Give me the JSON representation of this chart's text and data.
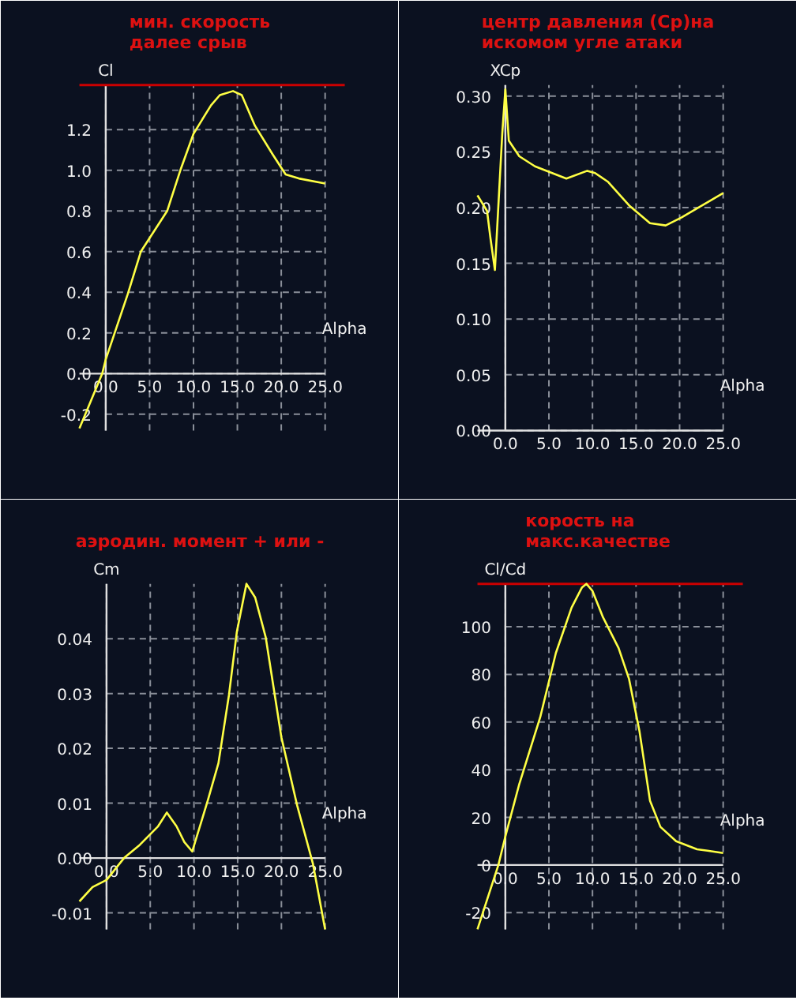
{
  "chart_data": [
    {
      "type": "line",
      "title": "мин. скорость\nдалее срыв",
      "xlabel": "Alpha",
      "ylabel": "Cl",
      "grid": true,
      "xlim": [
        -3.0,
        25.0
      ],
      "ylim": [
        -0.28,
        1.42
      ],
      "xticks": [
        {
          "value": 0,
          "label": "0.0"
        },
        {
          "value": 5,
          "label": "5.0"
        },
        {
          "value": 10,
          "label": "10.0"
        },
        {
          "value": 15,
          "label": "15.0"
        },
        {
          "value": 20,
          "label": "20.0"
        },
        {
          "value": 25,
          "label": "25.0"
        }
      ],
      "yticks": [
        {
          "value": -0.2,
          "label": "-0.2"
        },
        {
          "value": 0,
          "label": "0.0"
        },
        {
          "value": 0.2,
          "label": "0.2"
        },
        {
          "value": 0.4,
          "label": "0.4"
        },
        {
          "value": 0.6,
          "label": "0.6"
        },
        {
          "value": 0.8,
          "label": "0.8"
        },
        {
          "value": 1.0,
          "label": "1.0"
        },
        {
          "value": 1.2,
          "label": "1.2"
        }
      ],
      "ref_lines": [
        {
          "axis": "y",
          "value": 1.42,
          "color": "#cc0000"
        }
      ],
      "series": [
        {
          "color": "#ffff44",
          "x": [
            -3.0,
            -0.4,
            0,
            2.5,
            4.0,
            7.0,
            8.5,
            10.0,
            12.0,
            13.0,
            14.5,
            15.5,
            17.0,
            19.0,
            20.5,
            22.0,
            25.0
          ],
          "values": [
            -0.27,
            0,
            0.07,
            0.39,
            0.6,
            0.8,
            1.0,
            1.18,
            1.32,
            1.37,
            1.39,
            1.37,
            1.22,
            1.08,
            0.98,
            0.96,
            0.935
          ]
        }
      ]
    },
    {
      "type": "line",
      "title": "центр давления (Ср)на\nискомом угле атаки",
      "xlabel": "Alpha",
      "ylabel": "XCp",
      "grid": true,
      "xlim": [
        -3.2,
        25.0
      ],
      "ylim": [
        0,
        0.31
      ],
      "xticks": [
        {
          "value": 0,
          "label": "0.0"
        },
        {
          "value": 5,
          "label": "5.0"
        },
        {
          "value": 10,
          "label": "10.0"
        },
        {
          "value": 15,
          "label": "15.0"
        },
        {
          "value": 20,
          "label": "20.0"
        },
        {
          "value": 25,
          "label": "25.0"
        }
      ],
      "yticks": [
        {
          "value": 0,
          "label": "0.00"
        },
        {
          "value": 0.05,
          "label": "0.05"
        },
        {
          "value": 0.1,
          "label": "0.10"
        },
        {
          "value": 0.15,
          "label": "0.15"
        },
        {
          "value": 0.2,
          "label": "0.20"
        },
        {
          "value": 0.25,
          "label": "0.25"
        },
        {
          "value": 0.3,
          "label": "0.30"
        }
      ],
      "series": [
        {
          "color": "#ffff44",
          "x": [
            -3.2,
            -2.1,
            -1.7,
            -1.2,
            -0.35,
            0,
            0.4,
            1.6,
            3.4,
            7.0,
            9.4,
            10.3,
            11.8,
            14.2,
            16.6,
            18.4,
            20.2,
            22.6,
            25.0
          ],
          "values": [
            0.211,
            0.197,
            0.172,
            0.144,
            0.267,
            0.306,
            0.26,
            0.246,
            0.237,
            0.226,
            0.233,
            0.231,
            0.223,
            0.202,
            0.186,
            0.184,
            0.191,
            0.202,
            0.213
          ]
        }
      ]
    },
    {
      "type": "line",
      "title": "аэродин. момент + или -",
      "xlabel": "Alpha",
      "ylabel": "Cm",
      "grid": true,
      "xlim": [
        -3.1,
        25.0
      ],
      "ylim": [
        -0.013,
        0.05
      ],
      "xticks": [
        {
          "value": 0,
          "label": "0.0"
        },
        {
          "value": 5,
          "label": "5.0"
        },
        {
          "value": 10,
          "label": "10.0"
        },
        {
          "value": 15,
          "label": "15.0"
        },
        {
          "value": 20,
          "label": "20.0"
        },
        {
          "value": 25,
          "label": "25.0"
        }
      ],
      "yticks": [
        {
          "value": -0.01,
          "label": "-0.01"
        },
        {
          "value": 0,
          "label": "0.00"
        },
        {
          "value": 0.01,
          "label": "0.01"
        },
        {
          "value": 0.02,
          "label": "0.02"
        },
        {
          "value": 0.03,
          "label": "0.03"
        },
        {
          "value": 0.04,
          "label": "0.04"
        }
      ],
      "series": [
        {
          "color": "#ffff44",
          "x": [
            -3.1,
            -1.6,
            0,
            2.0,
            3.8,
            5.9,
            6.9,
            8.0,
            8.9,
            9.8,
            11.6,
            12.8,
            14.0,
            14.9,
            16.0,
            17.0,
            18.2,
            20.0,
            21.8,
            23.6,
            25.0
          ],
          "values": [
            -0.0079,
            -0.0053,
            -0.004,
            0,
            0.0024,
            0.0058,
            0.0083,
            0.0058,
            0.0029,
            0.0012,
            0.0106,
            0.0173,
            0.0297,
            0.0412,
            0.05,
            0.0475,
            0.0403,
            0.022,
            0.0096,
            -0.001,
            -0.013
          ]
        }
      ]
    },
    {
      "type": "line",
      "title": "корость на\nмакс.качестве",
      "xlabel": "Alpha",
      "ylabel": "Cl/Cd",
      "grid": true,
      "xlim": [
        -3.2,
        25.0
      ],
      "ylim": [
        -27,
        118
      ],
      "xticks": [
        {
          "value": 0,
          "label": "0.0"
        },
        {
          "value": 5,
          "label": "5.0"
        },
        {
          "value": 10,
          "label": "10.0"
        },
        {
          "value": 15,
          "label": "15.0"
        },
        {
          "value": 20,
          "label": "20.0"
        },
        {
          "value": 25,
          "label": "25.0"
        }
      ],
      "yticks": [
        -20,
        0,
        20,
        40,
        60,
        80,
        100
      ],
      "ref_lines": [
        {
          "axis": "y",
          "value": 118,
          "color": "#cc0000"
        }
      ],
      "series": [
        {
          "color": "#ffff44",
          "x": [
            -3.2,
            -0.8,
            0,
            1.6,
            4.0,
            5.8,
            7.6,
            8.8,
            9.3,
            10.0,
            11.2,
            13.0,
            14.2,
            15.4,
            16.6,
            17.8,
            19.6,
            22.0,
            23.2,
            25.0
          ],
          "values": [
            -27,
            0,
            12,
            34,
            62,
            89,
            108,
            116.5,
            118,
            115,
            104,
            91,
            78,
            56,
            27,
            16,
            10,
            6.6,
            6,
            5
          ]
        }
      ]
    }
  ]
}
